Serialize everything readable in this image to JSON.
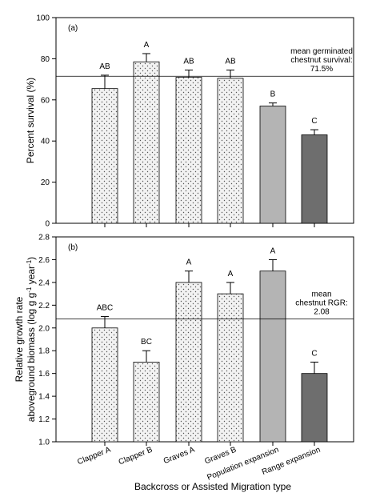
{
  "chart_data": [
    {
      "type": "bar",
      "panel_label": "(a)",
      "ylabel": "Percent survival (%)",
      "ylim": [
        0,
        100
      ],
      "yticks": [
        0,
        20,
        40,
        60,
        80,
        100
      ],
      "ytick_labels": [
        "0",
        "20",
        "40",
        "60",
        "80",
        "100"
      ],
      "categories": [
        "Clapper A",
        "Clapper B",
        "Graves A",
        "Graves B",
        "Population expansion",
        "Range expansion"
      ],
      "values": [
        65.5,
        78.5,
        71,
        70.5,
        57,
        43
      ],
      "errors": [
        6.5,
        4,
        3.5,
        4,
        1.5,
        2.5
      ],
      "significance_letters": [
        "AB",
        "A",
        "AB",
        "AB",
        "B",
        "C"
      ],
      "bar_fills": [
        "dotted",
        "dotted",
        "dotted",
        "dotted",
        "light-gray",
        "dark-gray"
      ],
      "reference_line": {
        "value": 71.5,
        "label_lines": [
          "mean germinated",
          "chestnut survival:",
          "71.5%"
        ]
      },
      "grid": false
    },
    {
      "type": "bar",
      "panel_label": "(b)",
      "ylabel_lines": [
        "Relative growth rate",
        "aboveground biomass (log g g-1 year-1)"
      ],
      "ylim": [
        1.0,
        2.8
      ],
      "yticks": [
        1.0,
        1.2,
        1.4,
        1.6,
        1.8,
        2.0,
        2.2,
        2.4,
        2.6,
        2.8
      ],
      "ytick_labels": [
        "1.0",
        "1.2",
        "1.4",
        "1.6",
        "1.8",
        "2.0",
        "2.2",
        "2.4",
        "2.6",
        "2.8"
      ],
      "categories": [
        "Clapper A",
        "Clapper B",
        "Graves A",
        "Graves B",
        "Population expansion",
        "Range expansion"
      ],
      "values": [
        2.0,
        1.7,
        2.4,
        2.3,
        2.5,
        1.6
      ],
      "errors": [
        0.1,
        0.1,
        0.1,
        0.1,
        0.1,
        0.1
      ],
      "significance_letters": [
        "ABC",
        "BC",
        "A",
        "A",
        "A",
        "C"
      ],
      "bar_fills": [
        "dotted",
        "dotted",
        "dotted",
        "dotted",
        "light-gray",
        "dark-gray"
      ],
      "reference_line": {
        "value": 2.08,
        "label_lines": [
          "mean",
          "chestnut RGR:",
          "2.08"
        ]
      },
      "xlabel": "Backcross or Assisted Migration type",
      "grid": false
    }
  ],
  "colors": {
    "light_gray_bar": "#b4b4b4",
    "dark_gray_bar": "#6e6e6e",
    "dotted_bar_fill": "#f2f2f2",
    "dot_color": "#555555",
    "axis_color": "#000000"
  }
}
